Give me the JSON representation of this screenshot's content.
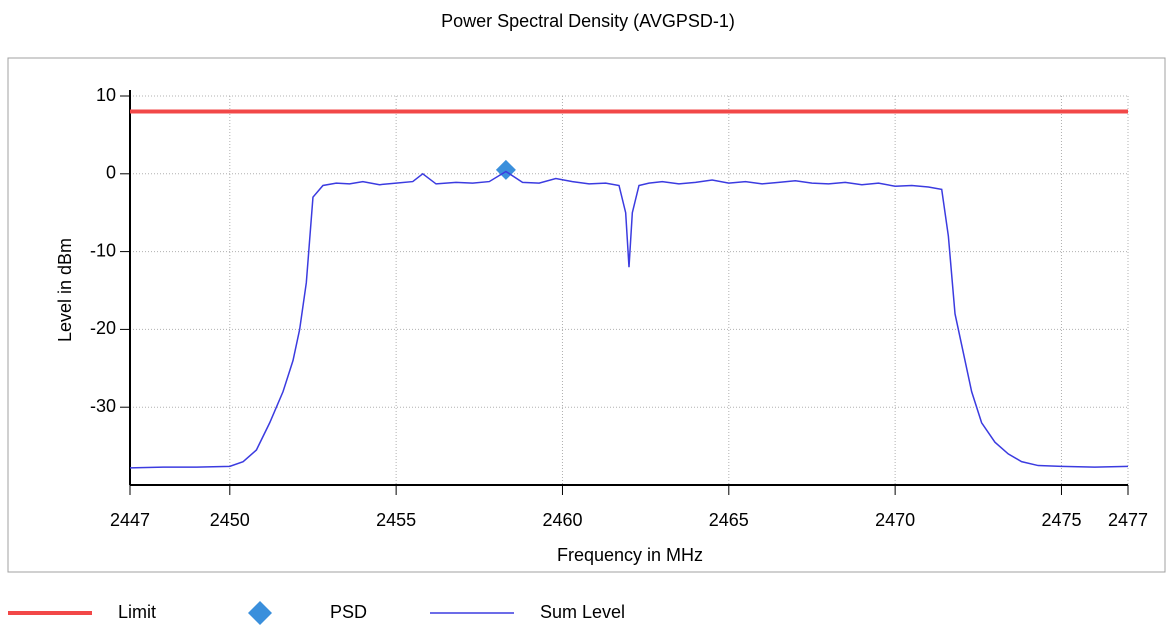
{
  "chart_data": {
    "type": "line",
    "title": "Power Spectral Density (AVGPSD-1)",
    "x_label": "Frequency in MHz",
    "y_label": "Level in dBm",
    "xlim": [
      2447,
      2477
    ],
    "xticks": [
      2447,
      2450,
      2455,
      2460,
      2465,
      2470,
      2475,
      2477
    ],
    "ylim": [
      -40,
      10
    ],
    "yticks": [
      -30,
      -20,
      -10,
      0,
      10
    ],
    "grid": true,
    "legend": "bottom",
    "series": [
      {
        "name": "Limit",
        "type": "line",
        "color": "#f24848",
        "x": [
          2447,
          2477
        ],
        "values": [
          8,
          8
        ]
      },
      {
        "name": "PSD",
        "type": "scatter",
        "color": "#3a8fdc",
        "x": [
          2458.3
        ],
        "values": [
          0.5
        ]
      },
      {
        "name": "Sum Level",
        "type": "line",
        "color": "#3b3be0",
        "x": [
          2447,
          2448,
          2449,
          2450,
          2450.4,
          2450.8,
          2451.2,
          2451.6,
          2451.9,
          2452.1,
          2452.3,
          2452.5,
          2452.8,
          2453.2,
          2453.6,
          2454,
          2454.5,
          2455,
          2455.5,
          2455.8,
          2456.2,
          2456.8,
          2457.3,
          2457.8,
          2458.3,
          2458.8,
          2459.3,
          2459.8,
          2460.3,
          2460.8,
          2461.3,
          2461.7,
          2461.9,
          2462,
          2462.1,
          2462.3,
          2462.6,
          2463,
          2463.5,
          2464,
          2464.5,
          2465,
          2465.5,
          2466,
          2466.5,
          2467,
          2467.5,
          2468,
          2468.5,
          2469,
          2469.5,
          2470,
          2470.5,
          2471,
          2471.4,
          2471.6,
          2471.8,
          2472,
          2472.3,
          2472.6,
          2473,
          2473.4,
          2473.8,
          2474.3,
          2475,
          2476,
          2477
        ],
        "values": [
          -37.8,
          -37.7,
          -37.7,
          -37.6,
          -37,
          -35.5,
          -32,
          -28,
          -24,
          -20,
          -14,
          -3,
          -1.5,
          -1.2,
          -1.3,
          -1.0,
          -1.4,
          -1.2,
          -1.0,
          0.0,
          -1.3,
          -1.1,
          -1.2,
          -1.0,
          0.3,
          -1.1,
          -1.2,
          -0.6,
          -1.0,
          -1.3,
          -1.2,
          -1.5,
          -5,
          -12,
          -5,
          -1.5,
          -1.2,
          -1.0,
          -1.3,
          -1.1,
          -0.8,
          -1.2,
          -1.0,
          -1.3,
          -1.1,
          -0.9,
          -1.2,
          -1.3,
          -1.1,
          -1.4,
          -1.2,
          -1.6,
          -1.5,
          -1.7,
          -2,
          -8,
          -18,
          -22,
          -28,
          -32,
          -34.5,
          -36,
          -37,
          -37.5,
          -37.6,
          -37.7,
          -37.6
        ]
      }
    ]
  }
}
